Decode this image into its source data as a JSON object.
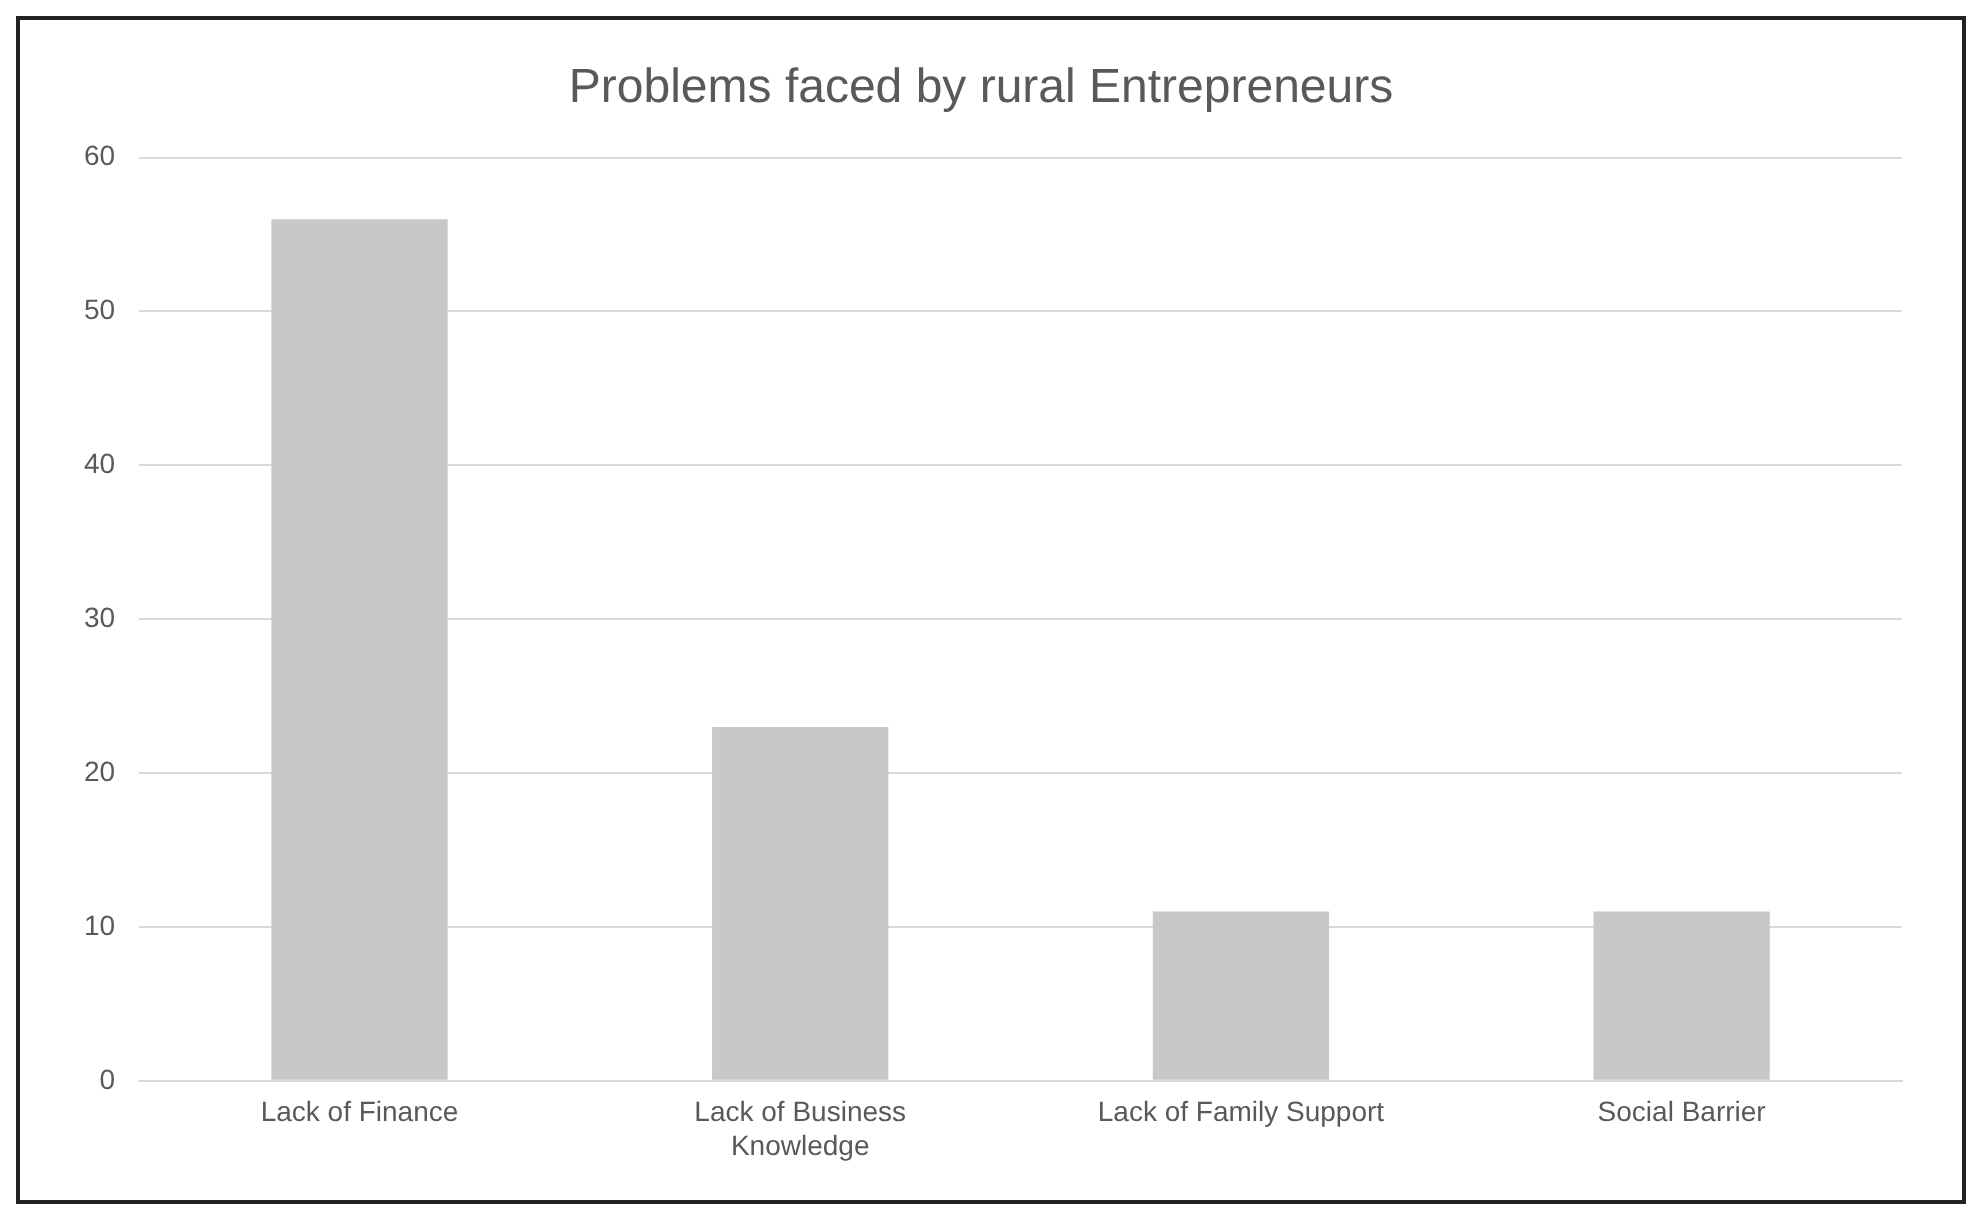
{
  "chart_data": {
    "type": "bar",
    "title": "Problems faced by rural Entrepreneurs",
    "categories": [
      "Lack of Finance",
      "Lack of Business Knowledge",
      "Lack of Family Support",
      "Social Barrier"
    ],
    "values": [
      56,
      23,
      11,
      11
    ],
    "color": "#c8c8c8",
    "ylim": [
      0,
      60
    ],
    "yticks": [
      0,
      10,
      20,
      30,
      40,
      50,
      60
    ],
    "grid": "y",
    "legend": false
  }
}
